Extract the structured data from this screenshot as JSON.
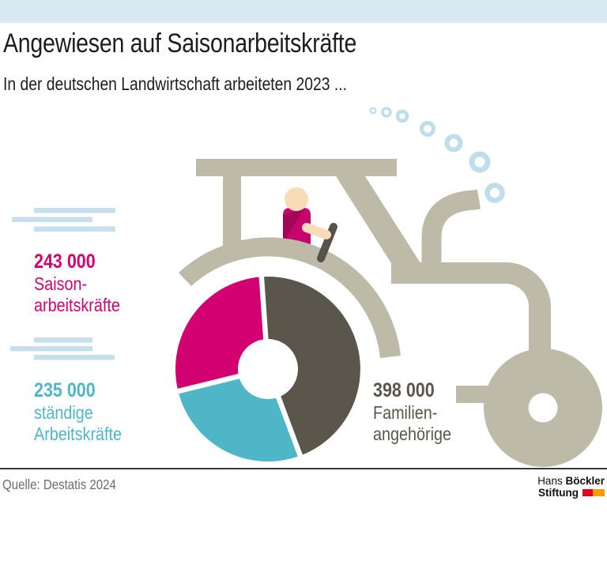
{
  "header": {
    "title": "Angewiesen auf Saisonarbeitskräfte",
    "subtitle": "In der deutschen Landwirtschaft arbeiteten 2023 ...",
    "topbar_color": "#D7E9F1"
  },
  "chart_data": {
    "type": "pie",
    "donut": true,
    "title": "Angewiesen auf Saisonarbeitskräfte",
    "subtitle": "In der deutschen Landwirtschaft arbeiteten 2023 ...",
    "period": "2023",
    "start_angle_deg": -4,
    "clockwise": true,
    "legend_position": "around-wheel",
    "total": 876000,
    "segments": [
      {
        "label": "Familienangehörige",
        "value": 398000,
        "display_value": "398 000",
        "display_lines": [
          "Familien-",
          "angehörige"
        ],
        "color": "#5B564B"
      },
      {
        "label": "ständige Arbeitskräfte",
        "value": 235000,
        "display_value": "235 000",
        "display_lines": [
          "ständige",
          "Arbeitskräfte"
        ],
        "color": "#4FB6C8"
      },
      {
        "label": "Saisonarbeitskräfte",
        "value": 243000,
        "display_value": "243 000",
        "display_lines": [
          "Saison-",
          "arbeitskräfte"
        ],
        "color": "#D20070"
      }
    ]
  },
  "illustration": {
    "tractor_body_color": "#BDBAA8",
    "dark_color": "#56524A",
    "skin_color": "#F8DCB8",
    "shirt_color": "#C7046C",
    "shirt_shadow_color": "#A30559",
    "smoke_color": "#BFDEEC",
    "speedline_color": "#C5E0EC"
  },
  "footer": {
    "source": "Quelle: Destatis 2024",
    "divider_color": "#3A3A3A",
    "logo": {
      "line1_regular": "Hans",
      "line1_bold": "Böckler",
      "line2_bold": "Stiftung",
      "red": "#E2001A",
      "orange": "#F59C00"
    }
  }
}
